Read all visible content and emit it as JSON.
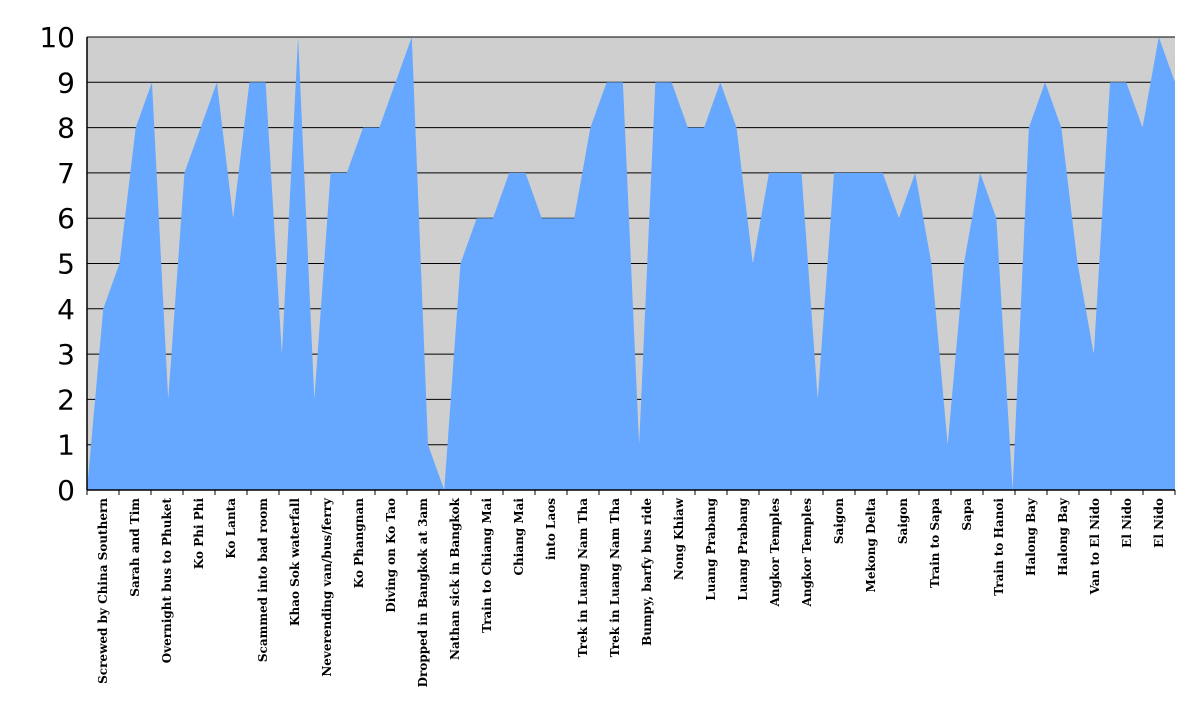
{
  "chart_data": {
    "type": "area",
    "title": "",
    "xlabel": "",
    "ylabel": "",
    "ylim": [
      0,
      10
    ],
    "yticks": [
      0,
      1,
      2,
      3,
      4,
      5,
      6,
      7,
      8,
      9,
      10
    ],
    "grid": true,
    "legend": "none",
    "colors": {
      "fill": "#66a8ff",
      "plot_background": "#cfcfcf",
      "gridline": "#000000"
    },
    "x_labels": [
      "Screwed by China Southern",
      "Sarah and Tim",
      "Overnight bus to Phuket",
      "Ko Phi Phi",
      "Ko Lanta",
      "Scammed into bad room",
      "Khao Sok waterfall",
      "Neverending van/bus/ferry",
      "Ko Phangnan",
      "Diving on Ko Tao",
      "Dropped in Bangkok at 3am",
      "Nathan sick in Bangkok",
      "Train to Chiang Mai",
      "Chiang Mai",
      "into Laos",
      "Trek in Luang Nam Tha",
      "Trek in Luang Nam Tha",
      "Bumpy, barfy bus ride",
      "Nong Khiaw",
      "Luang Prabang",
      "Luang Prabang",
      "Angkor Temples",
      "Angkor Temples",
      "Saigon",
      "Mekong Delta",
      "Saigon",
      "Train to Sapa",
      "Sapa",
      "Train to Hanoi",
      "Halong Bay",
      "Halong Bay",
      "Van to El Nido",
      "El Nido",
      "El Nido"
    ],
    "values": [
      0,
      4,
      5,
      8,
      9,
      2,
      7,
      8,
      9,
      6,
      9,
      9,
      3,
      10,
      2,
      7,
      7,
      8,
      8,
      9,
      10,
      1,
      0,
      5,
      6,
      6,
      7,
      7,
      6,
      6,
      6,
      8,
      9,
      9,
      1,
      9,
      9,
      8,
      8,
      9,
      8,
      5,
      7,
      7,
      7,
      2,
      7,
      7,
      7,
      7,
      6,
      7,
      5,
      1,
      5,
      7,
      6,
      0,
      8,
      9,
      8,
      5,
      3,
      9,
      9,
      8,
      10,
      9
    ]
  }
}
